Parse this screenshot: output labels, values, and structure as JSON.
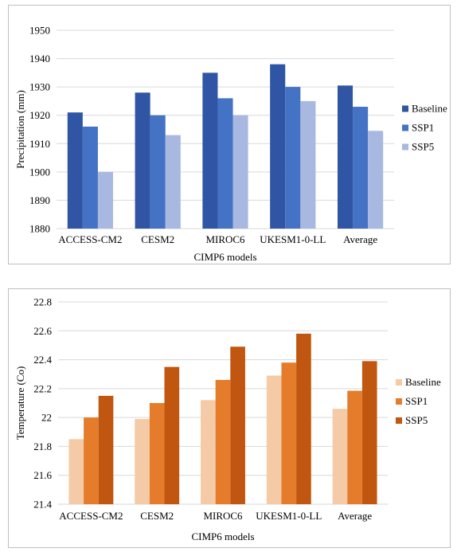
{
  "chart_data": [
    {
      "type": "bar",
      "title": "",
      "xlabel": "CIMP6 models",
      "ylabel": "Precipitation (mm)",
      "categories": [
        "ACCESS-CM2",
        "CESM2",
        "MIROC6",
        "UKESM1-0-LL",
        "Average"
      ],
      "ylim": [
        1880,
        1950
      ],
      "yticks": [
        1880,
        1890,
        1900,
        1910,
        1920,
        1930,
        1940,
        1950
      ],
      "grid": true,
      "legend": "right",
      "series": [
        {
          "name": "Baseline",
          "color": "#2f55a4",
          "values": [
            1921,
            1928,
            1935,
            1938,
            1930.5
          ]
        },
        {
          "name": "SSP1",
          "color": "#4472c4",
          "values": [
            1916,
            1920,
            1926,
            1930,
            1923
          ]
        },
        {
          "name": "SSP5",
          "color": "#a9b8e0",
          "values": [
            1900,
            1913,
            1920,
            1925,
            1914.5
          ]
        }
      ]
    },
    {
      "type": "bar",
      "title": "",
      "xlabel": "CIMP6 models",
      "ylabel": "Temperature (Co)",
      "categories": [
        "ACCESS-CM2",
        "CESM2",
        "MIROC6",
        "UKESM1-0-LL",
        "Average"
      ],
      "ylim": [
        21.4,
        22.8
      ],
      "yticks": [
        "21.4",
        "21.6",
        "21.8",
        "22",
        "22.2",
        "22.4",
        "22.6",
        "22.8"
      ],
      "grid": true,
      "legend": "right",
      "series": [
        {
          "name": "Baseline",
          "color": "#f4cba6",
          "values": [
            21.85,
            21.99,
            22.12,
            22.29,
            22.06
          ]
        },
        {
          "name": "SSP1",
          "color": "#e47c2c",
          "values": [
            22.0,
            22.1,
            22.26,
            22.38,
            22.185
          ]
        },
        {
          "name": "SSP5",
          "color": "#c0560f",
          "values": [
            22.15,
            22.35,
            22.49,
            22.58,
            22.39
          ]
        }
      ]
    }
  ]
}
